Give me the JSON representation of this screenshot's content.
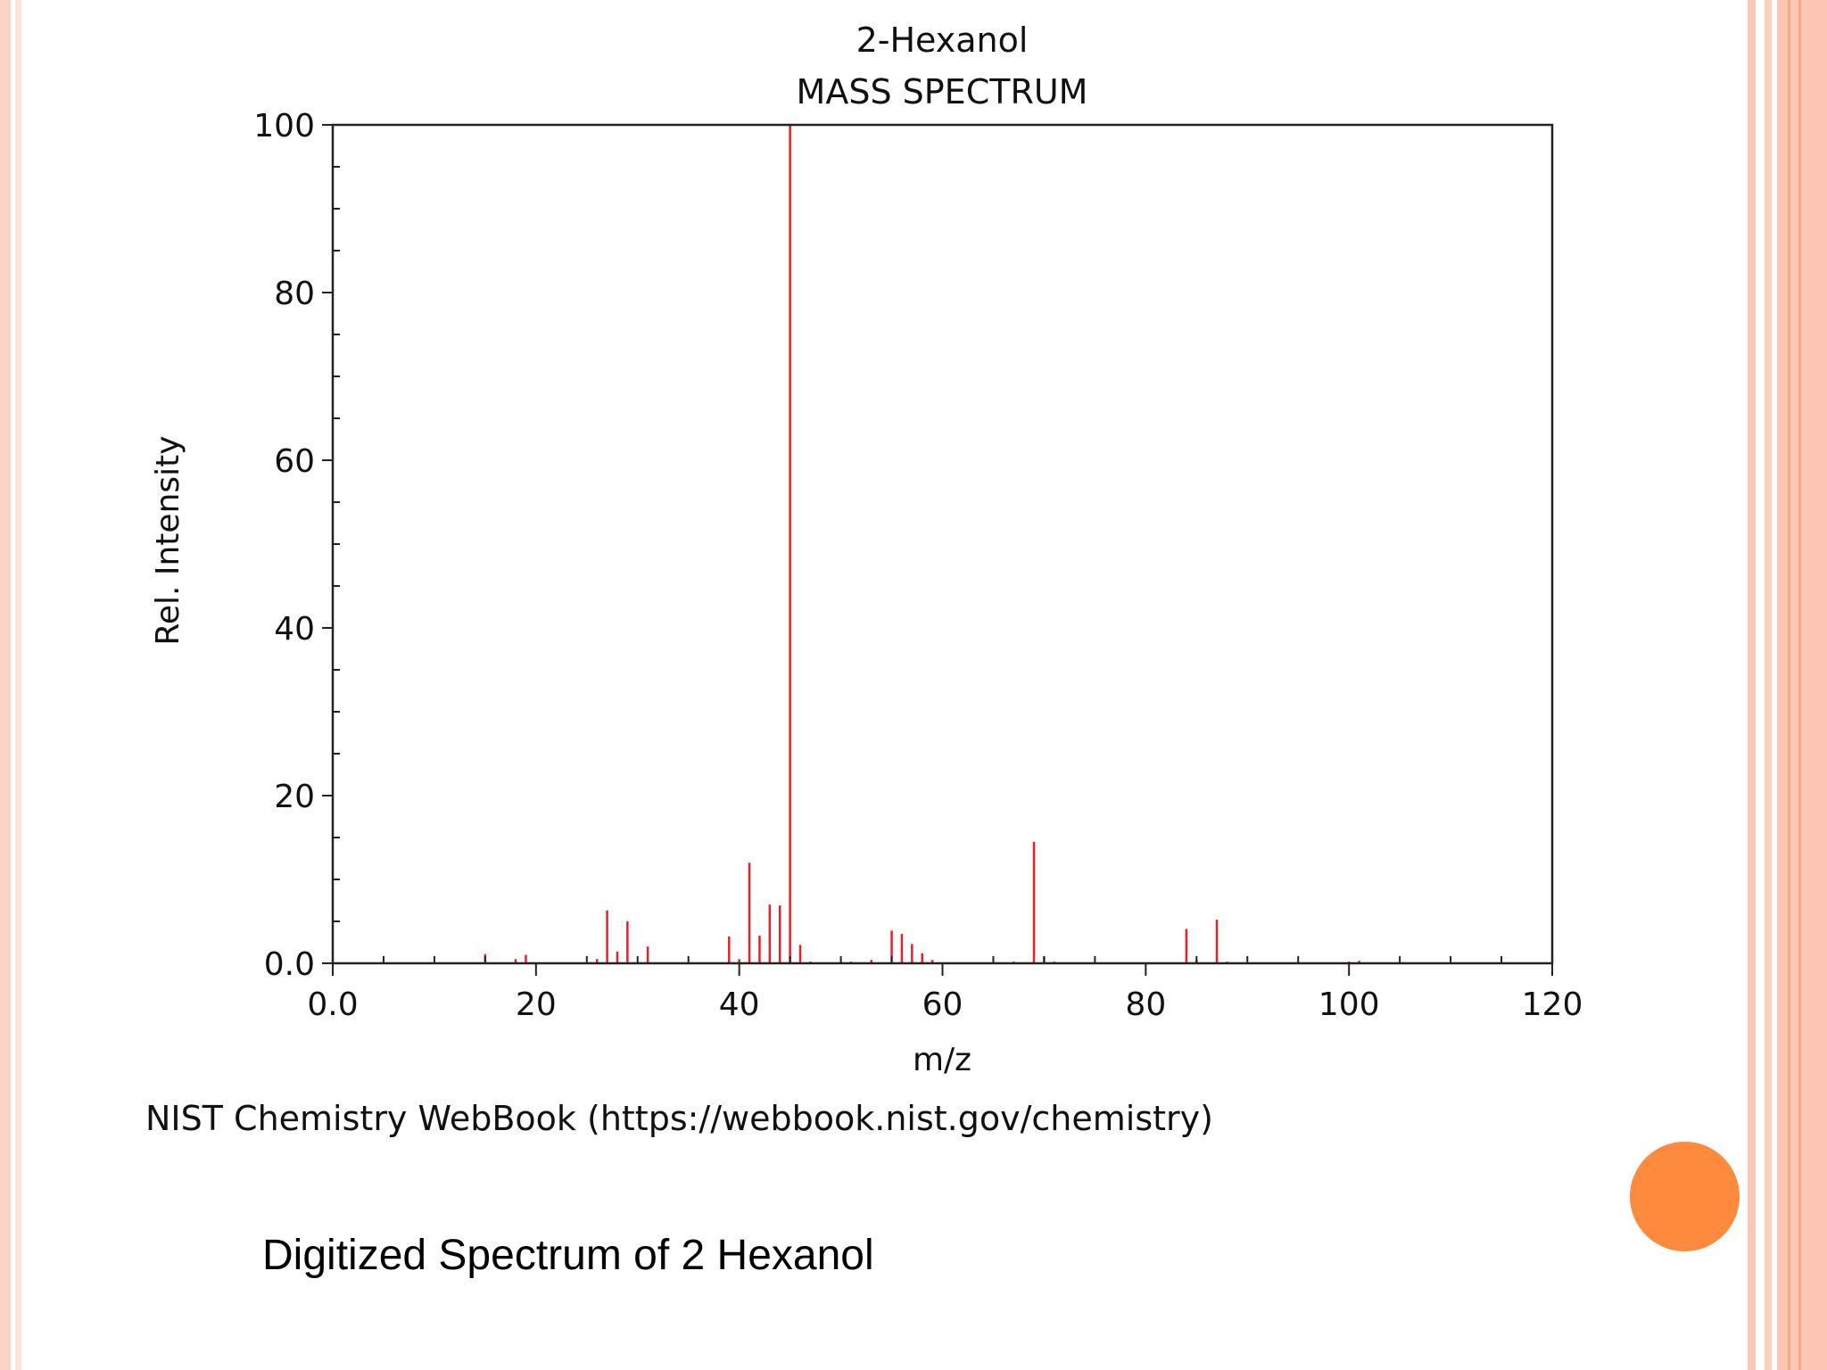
{
  "slide": {
    "attribution": "NIST Chemistry WebBook (https://webbook.nist.gov/chemistry)",
    "caption": "Digitized  Spectrum of 2 Hexanol",
    "accent_color": "#fd8a3d",
    "border_color": "#fbc8b6"
  },
  "chart_data": {
    "type": "bar",
    "title": "2-Hexanol",
    "subtitle": "MASS SPECTRUM",
    "xlabel": "m/z",
    "ylabel": "Rel. Intensity",
    "xlim": [
      0,
      120
    ],
    "ylim": [
      0,
      100
    ],
    "x_ticks": [
      0,
      20,
      40,
      60,
      80,
      100,
      120
    ],
    "x_tick_labels": [
      "0.0",
      "20",
      "40",
      "60",
      "80",
      "100",
      "120"
    ],
    "y_ticks": [
      0,
      20,
      40,
      60,
      80,
      100
    ],
    "y_tick_labels": [
      "0.0",
      "20",
      "40",
      "60",
      "80",
      "100"
    ],
    "bar_color": "#e8202a",
    "grid": false,
    "peaks": [
      {
        "mz": 15,
        "intensity": 1.1
      },
      {
        "mz": 18,
        "intensity": 0.5
      },
      {
        "mz": 19,
        "intensity": 1.0
      },
      {
        "mz": 26,
        "intensity": 0.5
      },
      {
        "mz": 27,
        "intensity": 6.3
      },
      {
        "mz": 28,
        "intensity": 1.4
      },
      {
        "mz": 29,
        "intensity": 5.0
      },
      {
        "mz": 31,
        "intensity": 2.0
      },
      {
        "mz": 39,
        "intensity": 3.2
      },
      {
        "mz": 40,
        "intensity": 0.5
      },
      {
        "mz": 41,
        "intensity": 12.0
      },
      {
        "mz": 42,
        "intensity": 3.3
      },
      {
        "mz": 43,
        "intensity": 7.0
      },
      {
        "mz": 44,
        "intensity": 6.9
      },
      {
        "mz": 45,
        "intensity": 100.0
      },
      {
        "mz": 46,
        "intensity": 2.2
      },
      {
        "mz": 47,
        "intensity": 0.2
      },
      {
        "mz": 50,
        "intensity": 0.2
      },
      {
        "mz": 51,
        "intensity": 0.2
      },
      {
        "mz": 53,
        "intensity": 0.4
      },
      {
        "mz": 55,
        "intensity": 3.9
      },
      {
        "mz": 56,
        "intensity": 3.5
      },
      {
        "mz": 57,
        "intensity": 2.3
      },
      {
        "mz": 58,
        "intensity": 1.2
      },
      {
        "mz": 59,
        "intensity": 0.4
      },
      {
        "mz": 67,
        "intensity": 0.2
      },
      {
        "mz": 69,
        "intensity": 14.5
      },
      {
        "mz": 70,
        "intensity": 0.8
      },
      {
        "mz": 71,
        "intensity": 0.2
      },
      {
        "mz": 84,
        "intensity": 4.1
      },
      {
        "mz": 85,
        "intensity": 0.4
      },
      {
        "mz": 87,
        "intensity": 5.2
      },
      {
        "mz": 88,
        "intensity": 0.2
      },
      {
        "mz": 100,
        "intensity": 0.2
      },
      {
        "mz": 101,
        "intensity": 0.3
      }
    ]
  }
}
